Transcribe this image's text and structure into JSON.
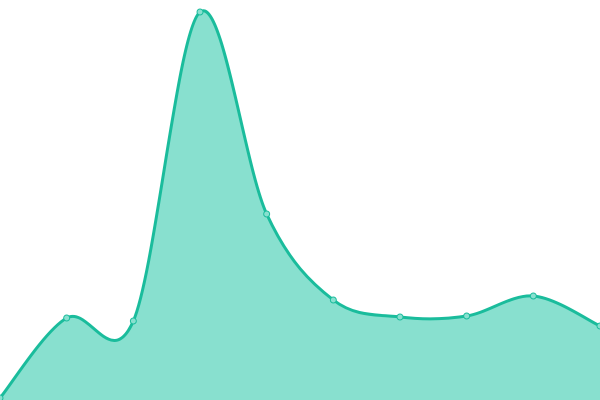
{
  "chart_data": {
    "type": "area",
    "title": "",
    "xlabel": "",
    "ylabel": "",
    "x": [
      0,
      1,
      2,
      3,
      4,
      5,
      6,
      7,
      8,
      9
    ],
    "values": [
      2,
      82,
      79,
      388,
      186,
      100,
      83,
      84,
      104,
      74
    ],
    "ylim": [
      0,
      400
    ],
    "grid": false,
    "smooth": true,
    "colors": {
      "fill": "#88e0cf",
      "stroke": "#1abc9c",
      "marker": "#88e0cf"
    }
  }
}
